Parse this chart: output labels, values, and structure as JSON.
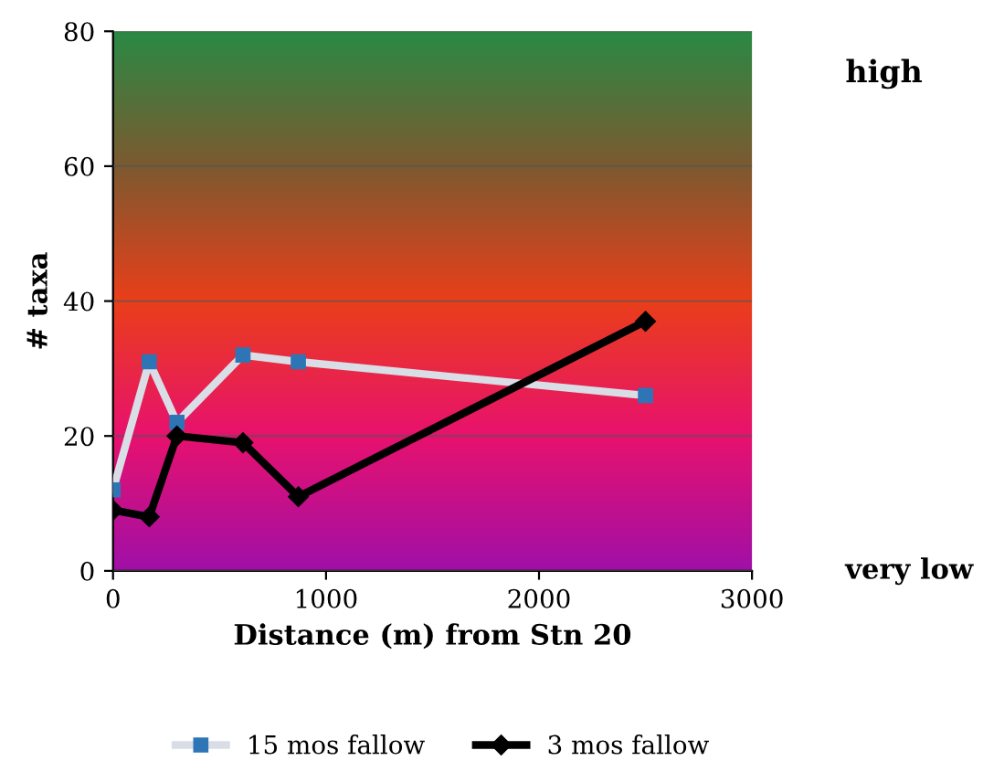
{
  "chart_data": {
    "type": "line",
    "xlabel": "Distance (m) from Stn 20",
    "ylabel": "# taxa",
    "xlim": [
      0,
      3000
    ],
    "xticks": [
      0,
      1000,
      2000,
      3000
    ],
    "ylim": [
      0,
      80
    ],
    "yticks": [
      0,
      20,
      40,
      60,
      80
    ],
    "grid": "y",
    "legend": "bottom",
    "annotations": [
      "high",
      "very low"
    ],
    "series": [
      {
        "name": "15 mos fallow",
        "color": "#d9dde6",
        "marker": "square",
        "x": [
          0,
          170,
          300,
          610,
          870,
          2500
        ],
        "values": [
          12,
          31,
          22,
          32,
          31,
          26
        ]
      },
      {
        "name": "3 mos fallow",
        "color": "#000000",
        "marker": "diamond",
        "x": [
          0,
          170,
          300,
          610,
          870,
          2500
        ],
        "values": [
          9,
          8,
          20,
          19,
          11,
          37
        ]
      }
    ]
  }
}
